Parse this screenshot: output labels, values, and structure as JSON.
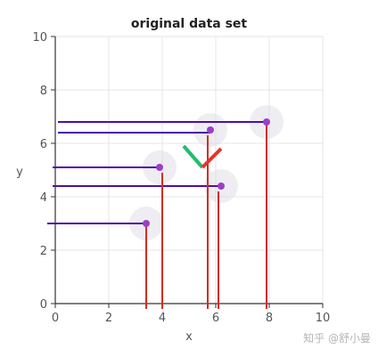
{
  "chart_data": {
    "type": "scatter",
    "title": "original data set",
    "xlabel": "x",
    "ylabel": "y",
    "xlim": [
      0,
      10
    ],
    "ylim": [
      0,
      10
    ],
    "xticks": [
      "0",
      "2",
      "4",
      "6",
      "8",
      "10"
    ],
    "yticks": [
      "0",
      "2",
      "4",
      "6",
      "8",
      "10"
    ],
    "grid": true,
    "points": [
      {
        "x": 3.4,
        "y": 3.0
      },
      {
        "x": 3.9,
        "y": 5.1
      },
      {
        "x": 5.8,
        "y": 6.5
      },
      {
        "x": 6.2,
        "y": 4.4
      },
      {
        "x": 7.9,
        "y": 6.8
      }
    ],
    "projection_lines": {
      "vertical": [
        {
          "x": 3.4,
          "y": 3.0
        },
        {
          "x": 4.0,
          "y": 4.9
        },
        {
          "x": 5.7,
          "y": 6.3
        },
        {
          "x": 6.1,
          "y": 4.2
        },
        {
          "x": 7.9,
          "y": 6.8
        }
      ],
      "horizontal": [
        {
          "y": 3.0,
          "x_start": -0.3,
          "x_end": 3.4
        },
        {
          "y": 4.4,
          "x_start": -0.1,
          "x_end": 6.2
        },
        {
          "y": 5.1,
          "x_start": -0.1,
          "x_end": 3.9
        },
        {
          "y": 6.4,
          "x_start": 0.1,
          "x_end": 5.8
        },
        {
          "y": 6.8,
          "x_start": 0.1,
          "x_end": 7.9
        }
      ]
    },
    "axis_direction_marks": [
      {
        "from": [
          4.8,
          5.9
        ],
        "to": [
          5.5,
          5.1
        ]
      },
      {
        "from": [
          5.5,
          5.1
        ],
        "to": [
          6.2,
          5.8
        ]
      }
    ],
    "colors": {
      "point": "#9b3fc7",
      "point_halo": "#d9d9e3",
      "vertical_lines": "#d92b20",
      "horizontal_lines": "#4b0fa8",
      "axis_mark_1": "#1fbf6b",
      "axis_mark_2": "#e8332a",
      "grid": "#e6e6e6",
      "axis": "#333333"
    }
  },
  "watermark": "知乎 @舒小曼"
}
